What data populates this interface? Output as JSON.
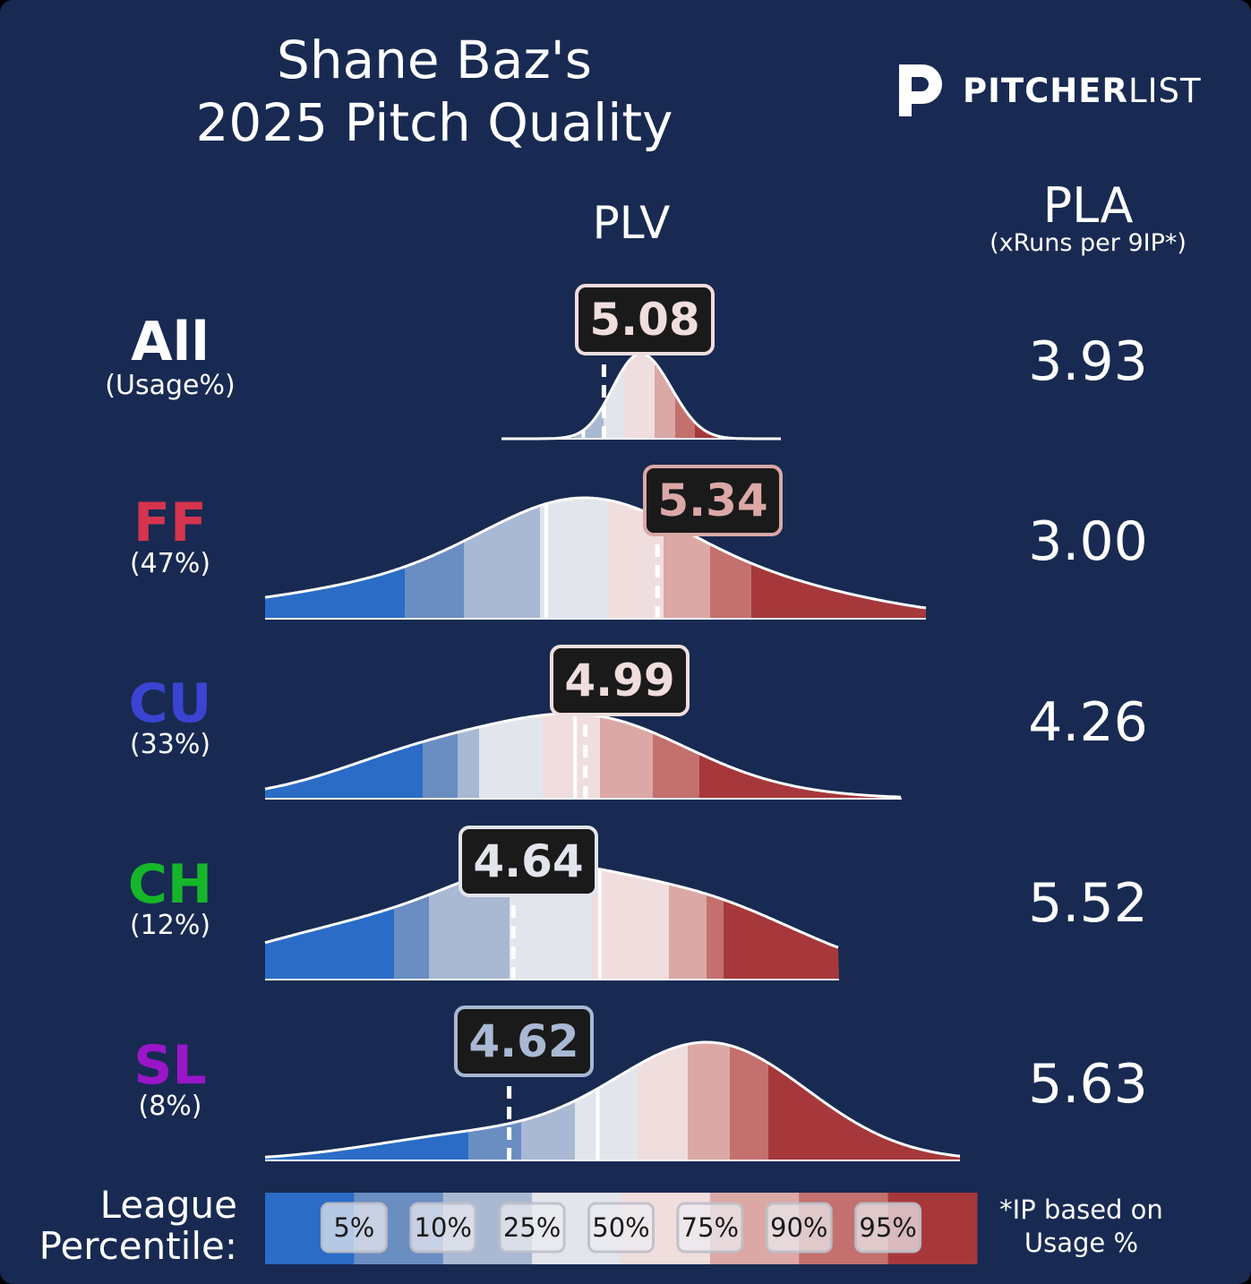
{
  "title_line1": "Shane Baz's",
  "title_line2": "2025 Pitch Quality",
  "logo": {
    "bold": "PITCHER",
    "light": "LIST"
  },
  "headers": {
    "plv": "PLV",
    "pla": "PLA",
    "pla_sub": "(xRuns per 9IP*)"
  },
  "legend": {
    "label_line1": "League",
    "label_line2": "Percentile:",
    "ticks": [
      "5%",
      "10%",
      "25%",
      "50%",
      "75%",
      "90%",
      "95%"
    ],
    "colors": [
      "#2a6cc6",
      "#6a8dc2",
      "#a9b8d3",
      "#e3e5ec",
      "#f0dddd",
      "#dba8a6",
      "#c3706e",
      "#a6383b"
    ],
    "footnote_line1": "*IP based on",
    "footnote_line2": "Usage %"
  },
  "colors": {
    "background": "#182a52",
    "FF": "#d5344e",
    "CU": "#3b44d2",
    "CH": "#16b62a",
    "SL": "#9a16c9",
    "All": "#ffffff"
  },
  "chart_data": {
    "type": "density",
    "metric": "PLV",
    "rows": [
      {
        "pitch": "All",
        "usage": "(Usage%)",
        "plv": 5.08,
        "plv_label": "5.08",
        "pla": "3.93",
        "league_median_plv": 4.98
      },
      {
        "pitch": "FF",
        "usage": "(47%)",
        "plv": 5.34,
        "plv_label": "5.34",
        "pla": "3.00",
        "league_median_plv": 4.8
      },
      {
        "pitch": "CU",
        "usage": "(33%)",
        "plv": 4.99,
        "plv_label": "4.99",
        "pla": "4.26",
        "league_median_plv": 4.94
      },
      {
        "pitch": "CH",
        "usage": "(12%)",
        "plv": 4.64,
        "plv_label": "4.64",
        "pla": "5.52",
        "league_median_plv": 5.06
      },
      {
        "pitch": "SL",
        "usage": "(8%)",
        "plv": 4.62,
        "plv_label": "4.62",
        "pla": "5.63",
        "league_median_plv": 5.05
      }
    ]
  }
}
